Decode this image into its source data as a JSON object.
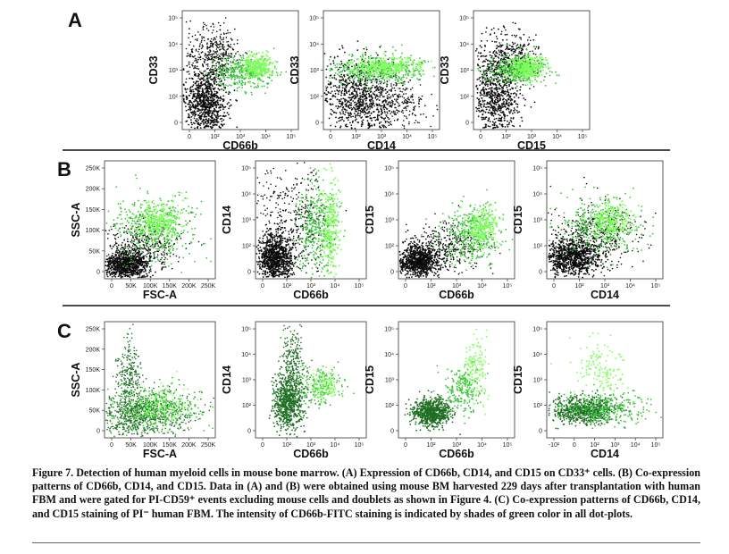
{
  "figure": {
    "panels": [
      {
        "letter": "A",
        "plots": [
          {
            "x_label": "CD66b",
            "y_label": "CD33",
            "x_ticks": [
              "0",
              "10²",
              "10³",
              "10⁴",
              "10⁵"
            ],
            "y_ticks": [
              "0",
              "10²",
              "10³",
              "10⁴",
              "10⁵"
            ]
          },
          {
            "x_label": "CD14",
            "y_label": "CD33",
            "x_ticks": [
              "0",
              "10²",
              "10³",
              "10⁴",
              "10⁵"
            ],
            "y_ticks": [
              "0",
              "10²",
              "10³",
              "10⁴",
              "10⁵"
            ]
          },
          {
            "x_label": "CD15",
            "y_label": "CD33",
            "x_ticks": [
              "0",
              "10²",
              "10³",
              "10⁴",
              "10⁵"
            ],
            "y_ticks": [
              "0",
              "10²",
              "10³",
              "10⁴",
              "10⁵"
            ]
          }
        ]
      },
      {
        "letter": "B",
        "plots": [
          {
            "x_label": "FSC-A",
            "y_label": "SSC-A",
            "x_ticks": [
              "0",
              "50K",
              "100K",
              "150K",
              "200K",
              "250K"
            ],
            "y_ticks": [
              "0",
              "50K",
              "100K",
              "150K",
              "200K",
              "250K"
            ]
          },
          {
            "x_label": "CD66b",
            "y_label": "CD14",
            "x_ticks": [
              "0",
              "10²",
              "10³",
              "10⁴",
              "10⁵"
            ],
            "y_ticks": [
              "0",
              "10²",
              "10³",
              "10⁴",
              "10⁵"
            ]
          },
          {
            "x_label": "CD66b",
            "y_label": "CD15",
            "x_ticks": [
              "0",
              "10²",
              "10³",
              "10⁴",
              "10⁵"
            ],
            "y_ticks": [
              "0",
              "10²",
              "10³",
              "10⁴",
              "10⁵"
            ]
          },
          {
            "x_label": "CD14",
            "y_label": "CD15",
            "x_ticks": [
              "0",
              "10²",
              "10³",
              "10⁴",
              "10⁵"
            ],
            "y_ticks": [
              "0",
              "10²",
              "10³",
              "10⁴",
              "10⁵"
            ]
          }
        ]
      },
      {
        "letter": "C",
        "plots": [
          {
            "x_label": "FSC-A",
            "y_label": "SSC-A",
            "x_ticks": [
              "0",
              "50K",
              "100K",
              "150K",
              "200K",
              "250K"
            ],
            "y_ticks": [
              "0",
              "50K",
              "100K",
              "150K",
              "200K",
              "250K"
            ]
          },
          {
            "x_label": "CD66b",
            "y_label": "CD14",
            "x_ticks": [
              "0",
              "10²",
              "10³",
              "10⁴",
              "10⁵"
            ],
            "y_ticks": [
              "0",
              "10²",
              "10³",
              "10⁴",
              "10⁵"
            ]
          },
          {
            "x_label": "CD66b",
            "y_label": "CD15",
            "x_ticks": [
              "0",
              "10²",
              "10³",
              "10⁴",
              "10⁵"
            ],
            "y_ticks": [
              "0",
              "10²",
              "10³",
              "10⁴",
              "10⁵"
            ]
          },
          {
            "x_label": "CD14",
            "y_label": "CD15",
            "x_ticks": [
              "-10²",
              "0",
              "10²",
              "10³",
              "10⁴",
              "10⁵"
            ],
            "y_ticks": [
              "0",
              "10²",
              "10³",
              "10⁴",
              "10⁵"
            ]
          }
        ]
      }
    ],
    "colors": {
      "dense_dots": "#0a0a0a",
      "green_light": "#7dff5a",
      "green_mid": "#3cc43c",
      "green_dark": "#1e6e22"
    }
  },
  "caption": "Figure 7. Detection of human myeloid cells in mouse bone marrow. (A) Expression of CD66b, CD14, and CD15 on CD33⁺ cells. (B) Co-expression patterns of CD66b, CD14, and CD15. Data in (A) and (B) were obtained using mouse BM harvested 229 days after transplantation with human FBM and were gated for PI-CD59⁺ events excluding mouse cells and doublets as shown in Figure 4. (C) Co-expression patterns of CD66b, CD14, and CD15 staining of PI⁻ human FBM. The intensity of CD66b-FITC staining is indicated by shades of green color in all dot-plots."
}
